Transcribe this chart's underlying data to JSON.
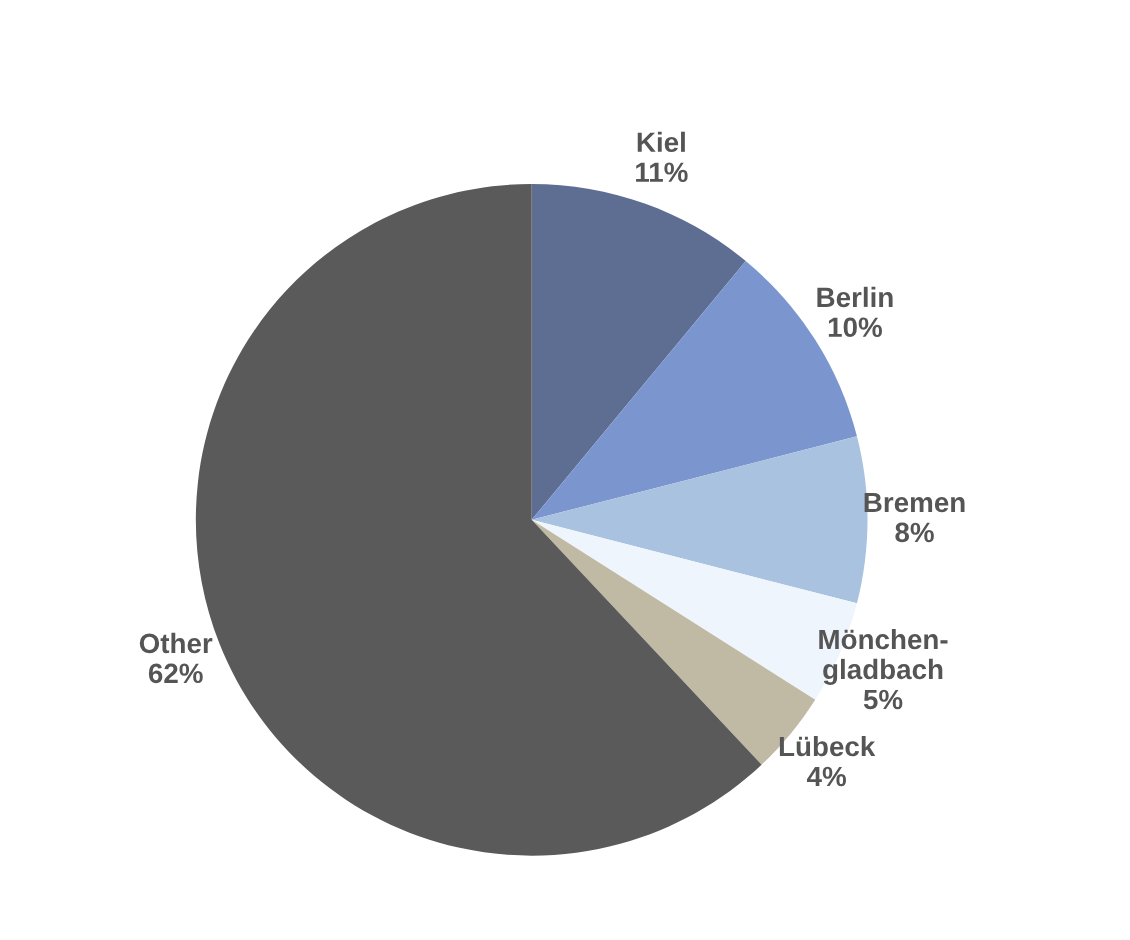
{
  "chart_data": {
    "type": "pie",
    "categories": [
      "Kiel",
      "Berlin",
      "Bremen",
      "Mönchen-\ngladbach",
      "Lübeck",
      "Other"
    ],
    "values": [
      11,
      10,
      8,
      5,
      4,
      62
    ],
    "colors": [
      "#5e6e93",
      "#7b96cf",
      "#a8c2e0",
      "#eef5fc",
      "#c0b9a3",
      "#5a5a5a"
    ],
    "value_labels": [
      "11%",
      "10%",
      "8%",
      "5%",
      "4%",
      "62%"
    ],
    "legend": false
  }
}
